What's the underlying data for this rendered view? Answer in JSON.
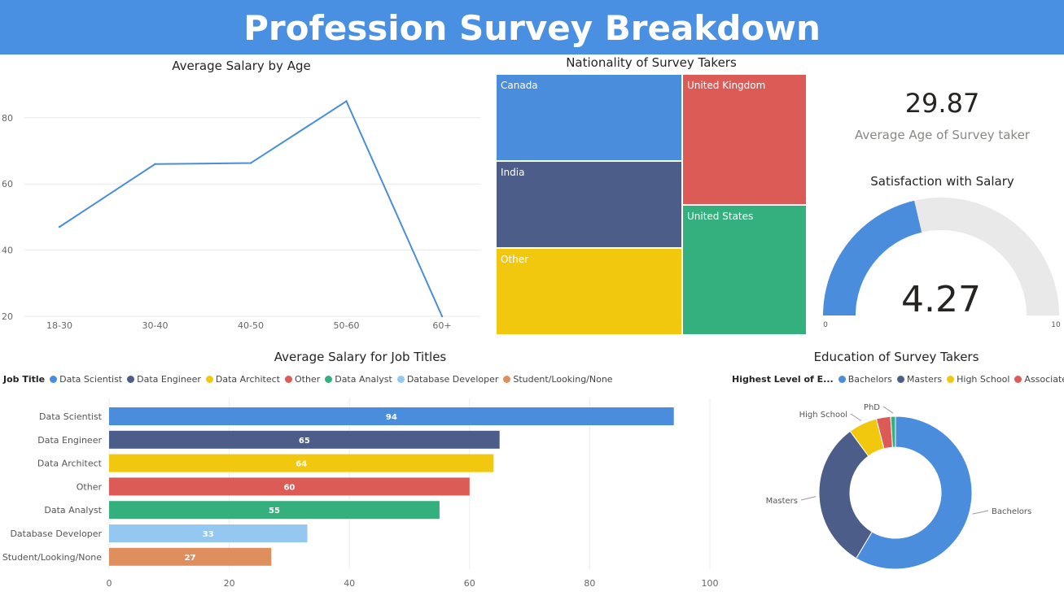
{
  "header": {
    "title": "Profession Survey Breakdown"
  },
  "kpi": {
    "value": "29.87",
    "label": "Average Age of Survey taker"
  },
  "colors": {
    "blue": "#4a8ddc",
    "navy": "#4c5d8a",
    "yellow": "#f2c80f",
    "red": "#dd5b57",
    "green": "#33b07e",
    "lightblue": "#94c8f0",
    "orange": "#df8f5d",
    "gaugebg": "#e9e9e9"
  },
  "chart_data": [
    {
      "id": "salary_by_age",
      "type": "line",
      "title": "Average Salary by Age",
      "categories": [
        "18-30",
        "30-40",
        "40-50",
        "50-60",
        "60+"
      ],
      "values": [
        47,
        66,
        66.3,
        85,
        20
      ],
      "yticks": [
        "20",
        "40",
        "60",
        "80"
      ],
      "ylim": [
        20,
        90
      ],
      "grid": true
    },
    {
      "id": "nationality",
      "type": "treemap",
      "title": "Nationality of Survey Takers",
      "items": [
        {
          "name": "Canada",
          "color": "#4a8ddc"
        },
        {
          "name": "India",
          "color": "#4c5d8a"
        },
        {
          "name": "Other",
          "color": "#f2c80f"
        },
        {
          "name": "United Kingdom",
          "color": "#dd5b57"
        },
        {
          "name": "United States",
          "color": "#33b07e"
        }
      ]
    },
    {
      "id": "satisfaction",
      "type": "gauge",
      "title": "Satisfaction with Salary",
      "value": 4.27,
      "value_label": "4.27",
      "min": 0,
      "max": 10,
      "min_label": "0",
      "max_label": "10"
    },
    {
      "id": "salary_by_job",
      "type": "bar",
      "title": "Average Salary for Job Titles",
      "legend_title": "Job Title",
      "categories": [
        "Data Scientist",
        "Data Engineer",
        "Data Architect",
        "Other",
        "Data Analyst",
        "Database Developer",
        "Student/Looking/None"
      ],
      "values": [
        94,
        65,
        64,
        60,
        55,
        33,
        27
      ],
      "value_labels": [
        "94",
        "65",
        "64",
        "60",
        "55",
        "33",
        "27"
      ],
      "colors": [
        "#4a8ddc",
        "#4c5d8a",
        "#f2c80f",
        "#dd5b57",
        "#33b07e",
        "#94c8f0",
        "#df8f5d"
      ],
      "xticks": [
        "0",
        "20",
        "40",
        "60",
        "80",
        "100"
      ],
      "xlim": [
        0,
        100
      ],
      "grid": true
    },
    {
      "id": "education",
      "type": "pie",
      "title": "Education of Survey Takers",
      "legend_title": "Highest Level of E...",
      "categories": [
        "Bachelors",
        "Masters",
        "High School",
        "Associates",
        "PhD"
      ],
      "values": [
        58,
        31,
        6,
        3,
        1
      ],
      "colors": [
        "#4a8ddc",
        "#4c5d8a",
        "#f2c80f",
        "#dd5b57",
        "#33b07e"
      ]
    }
  ]
}
